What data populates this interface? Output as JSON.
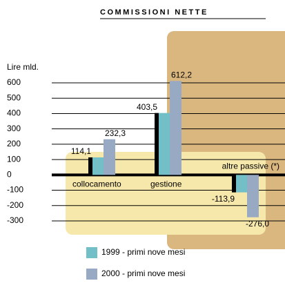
{
  "chart_data": {
    "type": "bar",
    "title": "COMMISSIONI NETTE",
    "y_label": "Lire mld.",
    "categories": [
      "collocamento",
      "gestione",
      "altre passive (*)"
    ],
    "series": [
      {
        "name": "1999 - primi nove mesi",
        "color": "#72bfc8",
        "values": [
          114.1,
          403.5,
          -113.9
        ],
        "value_labels": [
          "114,1",
          "403,5",
          "-113,9"
        ]
      },
      {
        "name": "2000 - primi nove mesi",
        "color": "#97a9c3",
        "values": [
          232.3,
          612.2,
          -276.0
        ],
        "value_labels": [
          "232,3",
          "612,2",
          "-276,0"
        ]
      }
    ],
    "ylim": [
      -300,
      600
    ],
    "yticks": [
      600,
      500,
      400,
      300,
      200,
      100,
      0,
      -100,
      -200,
      -300
    ],
    "grid": true
  }
}
